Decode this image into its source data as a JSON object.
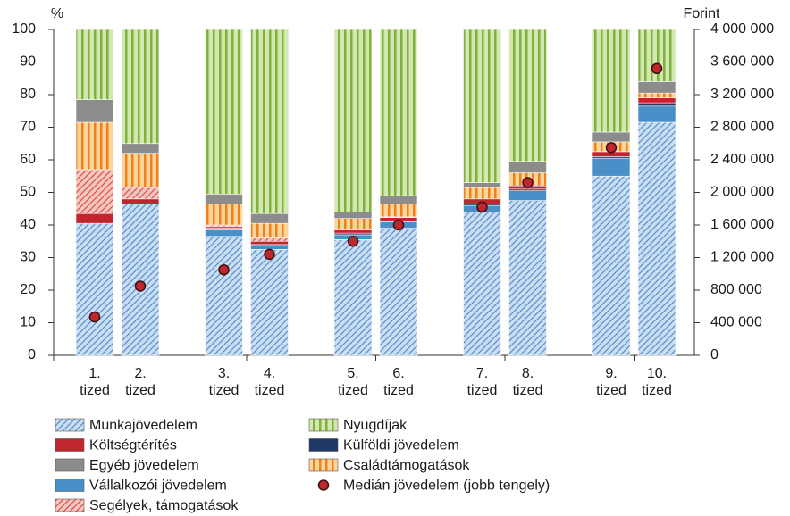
{
  "chart_data": {
    "type": "bar",
    "stacked": true,
    "y_label": "%",
    "y2_label": "Forint",
    "categories": [
      "1.\ntized",
      "2.\ntized",
      "3.\ntized",
      "4.\ntized",
      "5.\ntized",
      "6.\ntized",
      "7.\ntized",
      "8.\ntized",
      "9.\ntized",
      "10.\ntized"
    ],
    "series": [
      {
        "name": "Munkajövedelem",
        "color": "#c9def2",
        "pattern": "diagonal",
        "pattern_color": "#5b8fc9",
        "values": [
          40.5,
          46.5,
          36.5,
          32.5,
          35.5,
          39,
          44,
          47.5,
          55,
          71.5
        ]
      },
      {
        "name": "Vállalkozói jövedelem",
        "color": "#4a90c8",
        "values": [
          0,
          0,
          2,
          1.5,
          1.5,
          2,
          2,
          3,
          5.5,
          5
        ]
      },
      {
        "name": "Külföldi jövedelem",
        "color": "#1f3864",
        "values": [
          0,
          0,
          0.5,
          0,
          0.5,
          0.3,
          0.5,
          0.5,
          0.5,
          1
        ]
      },
      {
        "name": "Költségtérítés",
        "color": "#c0262d",
        "values": [
          3,
          1.5,
          0.5,
          1,
          1,
          1,
          1.5,
          1,
          1.5,
          1.5
        ]
      },
      {
        "name": "Segélyek, támogatások",
        "color": "#f4c6bd",
        "pattern": "diagonal",
        "pattern_color": "#d9534f",
        "values": [
          13.5,
          3.5,
          0.5,
          1,
          0,
          0.2,
          0,
          0,
          0,
          0
        ]
      },
      {
        "name": "Családtámogatások",
        "color": "#fbd49a",
        "pattern": "vertical",
        "pattern_color": "#f07f1e",
        "values": [
          14.5,
          10.5,
          6.5,
          4.5,
          3.5,
          4,
          3.5,
          4,
          3,
          1.5
        ]
      },
      {
        "name": "Egyéb jövedelem",
        "color": "#8c8c8c",
        "values": [
          7,
          3,
          3,
          3,
          2,
          2.5,
          1.5,
          3.5,
          3,
          3.5
        ]
      },
      {
        "name": "Nyugdíjak",
        "color": "#d2e8b0",
        "pattern": "vertical",
        "pattern_color": "#7fb13c",
        "values": [
          21.5,
          35,
          50.5,
          56.5,
          56,
          51,
          47,
          40.5,
          31.5,
          16
        ]
      },
      {
        "name": "Medián jövedelem (jobb tengely)",
        "type": "scatter",
        "axis": "y2",
        "color": "#c0262d",
        "values": [
          470000,
          850000,
          1050000,
          1240000,
          1400000,
          1600000,
          1820000,
          2120000,
          2550000,
          3520000
        ]
      }
    ],
    "ylim": [
      0,
      100
    ],
    "yticks": [
      0,
      10,
      20,
      30,
      40,
      50,
      60,
      70,
      80,
      90,
      100
    ],
    "y2lim": [
      0,
      4000000
    ],
    "y2ticks": [
      0,
      {
        "value": 400000,
        "label": "400 000"
      },
      {
        "value": 800000,
        "label": "800 000"
      },
      {
        "value": 1200000,
        "label": "1 200 000"
      },
      {
        "value": 1600000,
        "label": "1 600 000"
      },
      {
        "value": 2000000,
        "label": "2 000 000"
      },
      {
        "value": 2400000,
        "label": "2 400 000"
      },
      {
        "value": 2800000,
        "label": "2 800 000"
      },
      {
        "value": 3200000,
        "label": "3 200 000"
      },
      {
        "value": 3600000,
        "label": "3 600 000"
      },
      {
        "value": 4000000,
        "label": "4 000 000"
      }
    ],
    "grid": false,
    "legend": "bottom"
  }
}
